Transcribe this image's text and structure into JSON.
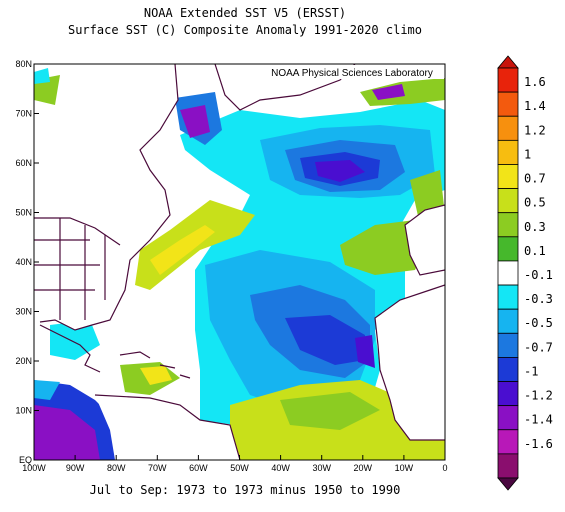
{
  "header": {
    "title": "NOAA Extended SST V5 (ERSST)",
    "subtitle": "Surface SST (C) Composite Anomaly 1991-2020 climo",
    "credit": "NOAA Physical Sciences Laboratory"
  },
  "footer": {
    "period": "Jul to Sep: 1973 to 1973 minus 1950 to 1990"
  },
  "map": {
    "lat_labels": [
      "80N",
      "70N",
      "60N",
      "50N",
      "40N",
      "30N",
      "20N",
      "10N",
      "EQ"
    ],
    "lon_labels": [
      "100W",
      "90W",
      "80W",
      "70W",
      "60W",
      "50W",
      "40W",
      "30W",
      "20W",
      "10W",
      "0"
    ],
    "extent": {
      "lon_min": -100,
      "lon_max": 0,
      "lat_min": 0,
      "lat_max": 80
    },
    "land_color": "#ffffff",
    "coast_color": "#4a0a3a"
  },
  "colorbar": {
    "labels": [
      "1.6",
      "1.4",
      "1.2",
      "1",
      "0.7",
      "0.5",
      "0.3",
      "0.1",
      "-0.1",
      "-0.3",
      "-0.5",
      "-0.7",
      "-1",
      "-1.2",
      "-1.4",
      "-1.6"
    ],
    "colors": [
      "#e8230b",
      "#f35a0e",
      "#f7900e",
      "#f7bd10",
      "#f2e418",
      "#c8e01a",
      "#8ccc22",
      "#46b82c",
      "#ffffff",
      "#14e6f5",
      "#16b4f0",
      "#1c78e0",
      "#1c3ad6",
      "#4a0ed0",
      "#8a10c4",
      "#b818b8",
      "#8a0e6e"
    ],
    "top_arrow_color": "#c8140c",
    "bottom_arrow_color": "#4a0840"
  }
}
